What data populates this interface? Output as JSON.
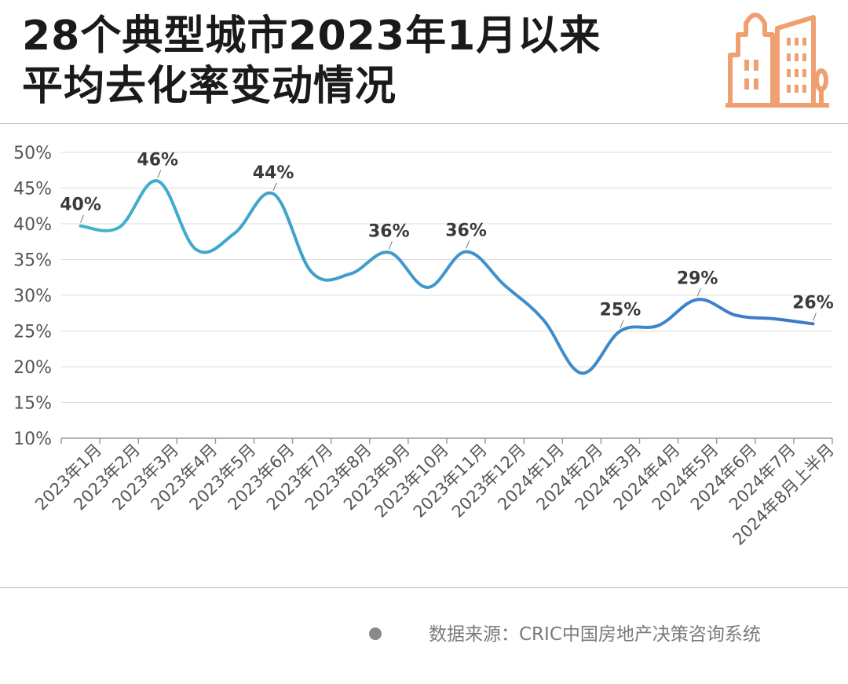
{
  "title": {
    "line1": "28个典型城市2023年1月以来",
    "line2": "平均去化率变动情况"
  },
  "logo_icon": "city-buildings-icon",
  "colors": {
    "line_start": "#41b3cc",
    "line_end": "#3d78c9",
    "logo": "#f0a070",
    "grid": "#dddddd"
  },
  "source": "数据来源：CRIC中国房地产决策咨询系统",
  "chart_data": {
    "type": "line",
    "title": "28个典型城市2023年1月以来平均去化率变动情况",
    "xlabel": "",
    "ylabel": "",
    "ylim": [
      10,
      50
    ],
    "yticks": [
      "10%",
      "15%",
      "20%",
      "25%",
      "30%",
      "35%",
      "40%",
      "45%",
      "50%"
    ],
    "ytick_values": [
      10,
      15,
      20,
      25,
      30,
      35,
      40,
      45,
      50
    ],
    "categories": [
      "2023年1月",
      "2023年2月",
      "2023年3月",
      "2023年4月",
      "2023年5月",
      "2023年6月",
      "2023年7月",
      "2023年8月",
      "2023年9月",
      "2023年10月",
      "2023年11月",
      "2023年12月",
      "2024年1月",
      "2024年2月",
      "2024年3月",
      "2024年4月",
      "2024年5月",
      "2024年6月",
      "2024年7月",
      "2024年8月上半月"
    ],
    "x": [
      0.5,
      1.5,
      2.5,
      3.5,
      4.5,
      5.5,
      6.5,
      7.5,
      8.5,
      9.5,
      10.5,
      11.5,
      12.5,
      13.5,
      14.5,
      15.5,
      16.5,
      17.5,
      18.5,
      19.5
    ],
    "series": [
      {
        "values": [
          39.7,
          39.5,
          46.0,
          36.4,
          38.7,
          44.2,
          33.2,
          33.0,
          36.0,
          31.1,
          36.1,
          31.4,
          26.6,
          19.1,
          25.0,
          25.8,
          29.4,
          27.2,
          26.7,
          26.0
        ]
      }
    ],
    "annotations": [
      {
        "index": 0,
        "label": "40%"
      },
      {
        "index": 2,
        "label": "46%"
      },
      {
        "index": 5,
        "label": "44%"
      },
      {
        "index": 8,
        "label": "36%"
      },
      {
        "index": 10,
        "label": "36%"
      },
      {
        "index": 14,
        "label": "25%"
      },
      {
        "index": 16,
        "label": "29%"
      },
      {
        "index": 19,
        "label": "26%"
      }
    ],
    "grid": true,
    "legend": "none"
  }
}
